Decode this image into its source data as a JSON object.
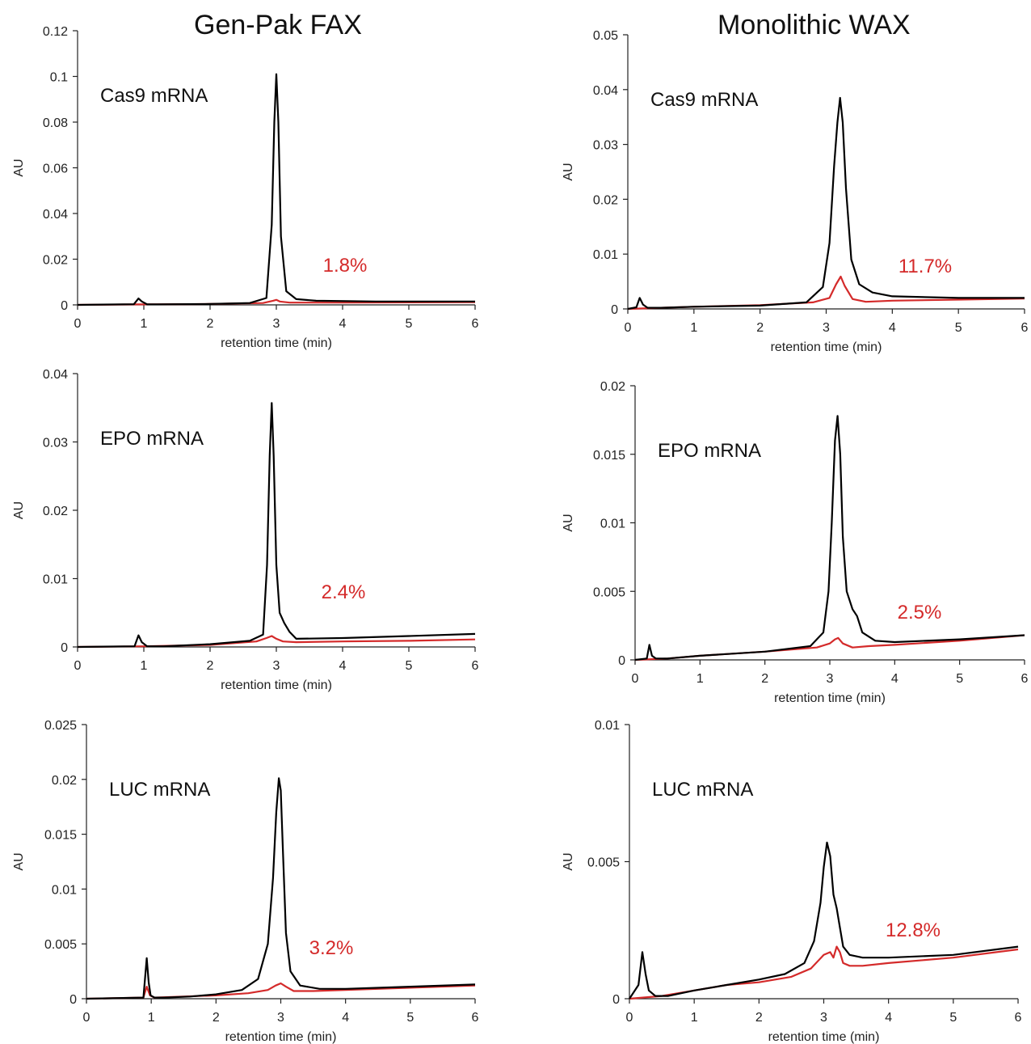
{
  "columns": [
    {
      "title": "Gen-Pak FAX"
    },
    {
      "title": "Monolithic WAX"
    }
  ],
  "colors": {
    "trace": "#000000",
    "fraction": "#d42a2a",
    "axis": "#222222"
  },
  "chart_data": [
    {
      "type": "line",
      "label": "Cas9 mRNA",
      "annotation": "1.8%",
      "xlabel": "retention time (min)",
      "ylabel": "AU",
      "xlim": [
        0,
        6
      ],
      "ylim": [
        0,
        0.12
      ],
      "xticks": [
        "0",
        "1",
        "2",
        "3",
        "4",
        "5",
        "6"
      ],
      "yticks": [
        "0",
        "0.02",
        "0.04",
        "0.06",
        "0.08",
        "0.1",
        "0.12"
      ],
      "series": [
        {
          "x": [
            0,
            0.85,
            0.92,
            0.97,
            1.05,
            1.2,
            2.0,
            2.6,
            2.85,
            2.93,
            2.97,
            3.0,
            3.03,
            3.07,
            3.15,
            3.3,
            3.6,
            4.5,
            6.0
          ],
          "y": [
            0,
            0.0003,
            0.0028,
            0.0015,
            0.0002,
            0.0002,
            0.0004,
            0.0008,
            0.003,
            0.035,
            0.08,
            0.101,
            0.08,
            0.03,
            0.006,
            0.0025,
            0.0018,
            0.0015,
            0.0015
          ]
        },
        {
          "x": [
            0,
            0.9,
            1.2,
            2.0,
            2.8,
            2.95,
            3.0,
            3.05,
            3.2,
            4.0,
            6.0
          ],
          "y": [
            0,
            0.0002,
            0.0002,
            0.0004,
            0.0008,
            0.0018,
            0.0022,
            0.0015,
            0.001,
            0.001,
            0.0012
          ]
        }
      ]
    },
    {
      "type": "line",
      "label": "EPO mRNA",
      "annotation": "2.4%",
      "xlabel": "retention time (min)",
      "ylabel": "AU",
      "xlim": [
        0,
        6
      ],
      "ylim": [
        0,
        0.04
      ],
      "xticks": [
        "0",
        "1",
        "2",
        "3",
        "4",
        "5",
        "6"
      ],
      "yticks": [
        "0",
        "0.01",
        "0.02",
        "0.03",
        "0.04"
      ],
      "series": [
        {
          "x": [
            0,
            0.86,
            0.92,
            0.97,
            1.05,
            1.3,
            2.0,
            2.6,
            2.8,
            2.86,
            2.9,
            2.93,
            2.96,
            3.0,
            3.05,
            3.12,
            3.2,
            3.3,
            4.0,
            5.0,
            6.0
          ],
          "y": [
            0,
            0.0001,
            0.0017,
            0.0007,
            0.0001,
            0.0001,
            0.0004,
            0.0009,
            0.0018,
            0.012,
            0.028,
            0.0357,
            0.028,
            0.012,
            0.005,
            0.0035,
            0.0022,
            0.0012,
            0.0013,
            0.0016,
            0.0019
          ]
        },
        {
          "x": [
            0,
            1.0,
            2.0,
            2.7,
            2.85,
            2.93,
            3.0,
            3.1,
            3.3,
            4.0,
            5.0,
            6.0
          ],
          "y": [
            0,
            0.0001,
            0.0003,
            0.0008,
            0.0013,
            0.0016,
            0.0012,
            0.0008,
            0.0007,
            0.0008,
            0.0009,
            0.0011
          ]
        }
      ]
    },
    {
      "type": "line",
      "label": "LUC mRNA",
      "annotation": "3.2%",
      "xlabel": "retention time (min)",
      "ylabel": "AU",
      "xlim": [
        0,
        6
      ],
      "ylim": [
        0,
        0.025
      ],
      "xticks": [
        "0",
        "1",
        "2",
        "3",
        "4",
        "5",
        "6"
      ],
      "yticks": [
        "0",
        "0.005",
        "0.01",
        "0.015",
        "0.02",
        "0.025"
      ],
      "series": [
        {
          "x": [
            0,
            0.88,
            0.93,
            0.96,
            0.99,
            1.05,
            1.2,
            1.6,
            2.0,
            2.4,
            2.65,
            2.8,
            2.88,
            2.93,
            2.97,
            3.0,
            3.03,
            3.08,
            3.15,
            3.3,
            3.6,
            4.0,
            5.0,
            6.0
          ],
          "y": [
            0,
            0.0001,
            0.0037,
            0.0015,
            0.0003,
            0.0001,
            0.0001,
            0.0002,
            0.0004,
            0.0008,
            0.0018,
            0.005,
            0.011,
            0.017,
            0.0201,
            0.019,
            0.014,
            0.006,
            0.0025,
            0.0012,
            0.0009,
            0.0009,
            0.0011,
            0.0013
          ]
        },
        {
          "x": [
            0,
            0.88,
            0.93,
            0.98,
            1.05,
            1.5,
            2.0,
            2.5,
            2.8,
            2.92,
            3.0,
            3.08,
            3.2,
            3.5,
            4.0,
            5.0,
            6.0
          ],
          "y": [
            0,
            0.0001,
            0.0011,
            0.0003,
            0.0001,
            0.0002,
            0.0003,
            0.0005,
            0.0008,
            0.0012,
            0.0014,
            0.0011,
            0.0007,
            0.0007,
            0.0008,
            0.001,
            0.0012
          ]
        }
      ]
    },
    {
      "type": "line",
      "label": "Cas9 mRNA",
      "annotation": "11.7%",
      "xlabel": "retention time (min)",
      "ylabel": "AU",
      "xlim": [
        0,
        6
      ],
      "ylim": [
        0,
        0.05
      ],
      "xticks": [
        "0",
        "1",
        "2",
        "3",
        "4",
        "5",
        "6"
      ],
      "yticks": [
        "0",
        "0.01",
        "0.02",
        "0.03",
        "0.04",
        "0.05"
      ],
      "series": [
        {
          "x": [
            0,
            0.13,
            0.18,
            0.23,
            0.3,
            0.5,
            1.0,
            2.0,
            2.7,
            2.95,
            3.05,
            3.12,
            3.17,
            3.21,
            3.25,
            3.3,
            3.38,
            3.5,
            3.7,
            4.0,
            5.0,
            6.0
          ],
          "y": [
            0,
            0.0003,
            0.002,
            0.0008,
            0.0002,
            0.0002,
            0.0004,
            0.0006,
            0.0012,
            0.004,
            0.012,
            0.026,
            0.034,
            0.0385,
            0.034,
            0.022,
            0.009,
            0.0045,
            0.003,
            0.0023,
            0.002,
            0.002
          ]
        },
        {
          "x": [
            0,
            0.5,
            1.0,
            2.0,
            2.8,
            3.05,
            3.15,
            3.22,
            3.28,
            3.4,
            3.6,
            4.0,
            5.0,
            6.0
          ],
          "y": [
            0,
            0.0002,
            0.0004,
            0.0007,
            0.0012,
            0.002,
            0.0045,
            0.0059,
            0.0042,
            0.0018,
            0.0013,
            0.0015,
            0.0017,
            0.0019
          ]
        }
      ]
    },
    {
      "type": "line",
      "label": "EPO mRNA",
      "annotation": "2.5%",
      "xlabel": "retention time (min)",
      "ylabel": "AU",
      "xlim": [
        0,
        6
      ],
      "ylim": [
        0,
        0.02
      ],
      "xticks": [
        "0",
        "1",
        "2",
        "3",
        "4",
        "5",
        "6"
      ],
      "yticks": [
        "0",
        "0.005",
        "0.01",
        "0.015",
        "0.02"
      ],
      "series": [
        {
          "x": [
            0,
            0.18,
            0.22,
            0.26,
            0.32,
            0.5,
            1.0,
            2.0,
            2.7,
            2.9,
            2.98,
            3.03,
            3.08,
            3.12,
            3.16,
            3.2,
            3.26,
            3.35,
            3.42,
            3.5,
            3.7,
            4.0,
            5.0,
            6.0
          ],
          "y": [
            0,
            0.0001,
            0.0011,
            0.0003,
            0.0001,
            0.0001,
            0.0003,
            0.0006,
            0.001,
            0.002,
            0.005,
            0.01,
            0.016,
            0.0178,
            0.015,
            0.009,
            0.005,
            0.0037,
            0.0032,
            0.002,
            0.0014,
            0.0013,
            0.0015,
            0.0018
          ]
        },
        {
          "x": [
            0,
            0.5,
            1.0,
            2.0,
            2.8,
            3.0,
            3.08,
            3.13,
            3.2,
            3.35,
            3.6,
            4.0,
            5.0,
            6.0
          ],
          "y": [
            0,
            0.0001,
            0.0003,
            0.0006,
            0.0009,
            0.0012,
            0.0015,
            0.0016,
            0.0012,
            0.0009,
            0.001,
            0.0011,
            0.0014,
            0.0018
          ]
        }
      ]
    },
    {
      "type": "line",
      "label": "LUC mRNA",
      "annotation": "12.8%",
      "xlabel": "retention time (min)",
      "ylabel": "AU",
      "xlim": [
        0,
        6
      ],
      "ylim": [
        0,
        0.01
      ],
      "xticks": [
        "0",
        "1",
        "2",
        "3",
        "4",
        "5",
        "6"
      ],
      "yticks": [
        "0",
        "0.005",
        "0.01"
      ],
      "series": [
        {
          "x": [
            0,
            0.14,
            0.2,
            0.25,
            0.3,
            0.4,
            0.6,
            1.0,
            1.5,
            2.0,
            2.4,
            2.7,
            2.85,
            2.95,
            3.0,
            3.05,
            3.1,
            3.15,
            3.2,
            3.25,
            3.3,
            3.4,
            3.6,
            4.0,
            5.0,
            6.0
          ],
          "y": [
            0,
            0.0005,
            0.0017,
            0.0009,
            0.0003,
            0.0001,
            0.0001,
            0.0003,
            0.0005,
            0.0007,
            0.0009,
            0.0013,
            0.0021,
            0.0035,
            0.0048,
            0.0057,
            0.0052,
            0.0038,
            0.0033,
            0.0026,
            0.0019,
            0.0016,
            0.0015,
            0.0015,
            0.0016,
            0.0019
          ]
        },
        {
          "x": [
            0,
            0.5,
            1.0,
            1.5,
            2.0,
            2.5,
            2.8,
            3.0,
            3.1,
            3.15,
            3.2,
            3.25,
            3.3,
            3.4,
            3.6,
            4.0,
            5.0,
            6.0
          ],
          "y": [
            0,
            0.0001,
            0.0003,
            0.0005,
            0.0006,
            0.0008,
            0.0011,
            0.0016,
            0.0017,
            0.0015,
            0.0019,
            0.0017,
            0.0013,
            0.0012,
            0.0012,
            0.0013,
            0.0015,
            0.0018
          ]
        }
      ]
    }
  ]
}
